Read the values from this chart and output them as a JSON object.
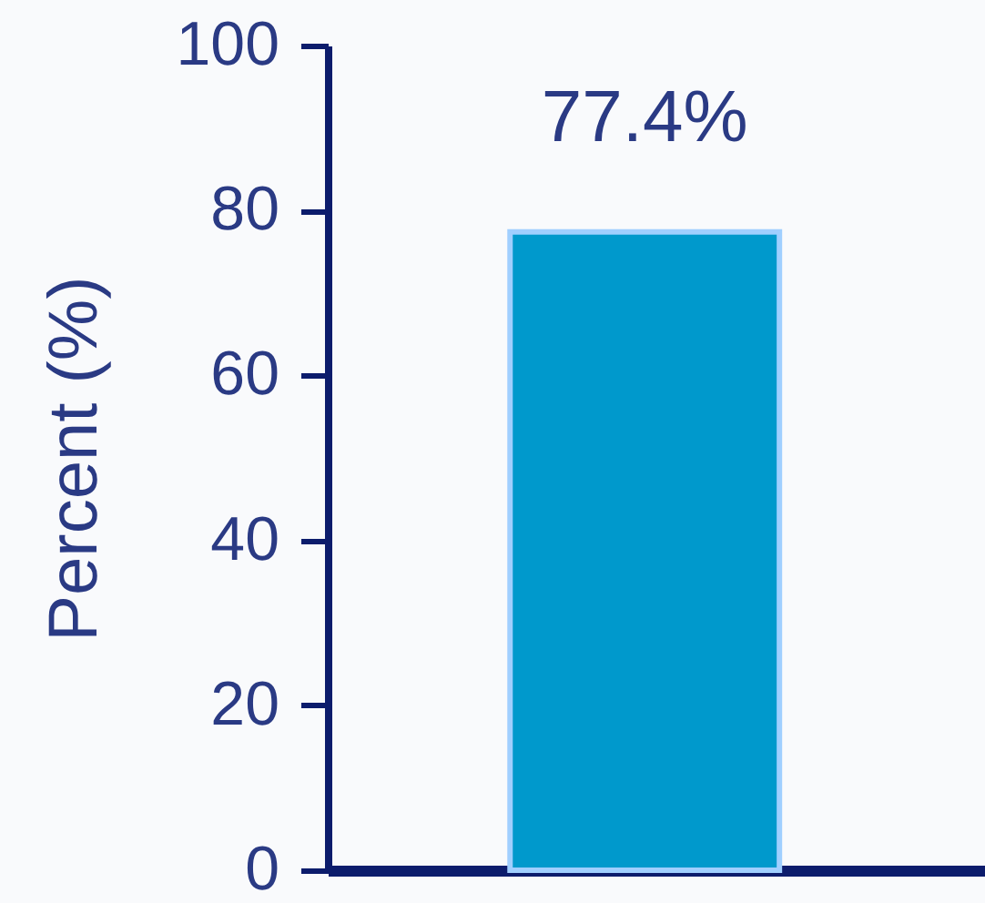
{
  "chart_data": {
    "type": "bar",
    "ylabel": "Percent (%)",
    "categories": [
      null
    ],
    "values": [
      77.4
    ],
    "value_labels": [
      "77.4%"
    ],
    "color": "#0099cc",
    "ylim": [
      0,
      100
    ],
    "yticks": [
      0,
      20,
      40,
      60,
      80,
      100
    ],
    "tick_labels": "y"
  }
}
